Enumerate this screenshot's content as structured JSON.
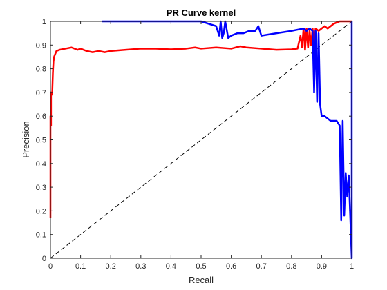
{
  "chart_data": {
    "type": "line",
    "title": "PR Curve kernel",
    "xlabel": "Recall",
    "ylabel": "Precision",
    "xlim": [
      0,
      1
    ],
    "ylim": [
      0,
      1
    ],
    "xticks": [
      "0",
      "0.1",
      "0.2",
      "0.3",
      "0.4",
      "0.5",
      "0.6",
      "0.7",
      "0.8",
      "0.9",
      "1"
    ],
    "yticks": [
      "0",
      "0.1",
      "0.2",
      "0.3",
      "0.4",
      "0.5",
      "0.6",
      "0.7",
      "0.8",
      "0.9",
      "1"
    ],
    "grid": false,
    "series": [
      {
        "color": "#ff0000",
        "x": [
          0.0,
          0.0,
          0.002,
          0.002,
          0.004,
          0.006,
          0.008,
          0.01,
          0.012,
          0.015,
          0.02,
          0.03,
          0.05,
          0.07,
          0.09,
          0.1,
          0.11,
          0.12,
          0.14,
          0.16,
          0.18,
          0.2,
          0.25,
          0.3,
          0.35,
          0.4,
          0.45,
          0.48,
          0.5,
          0.55,
          0.6,
          0.63,
          0.65,
          0.7,
          0.75,
          0.8,
          0.82,
          0.83,
          0.835,
          0.84,
          0.845,
          0.85,
          0.855,
          0.86,
          0.865,
          0.87,
          0.875,
          0.88,
          0.89,
          0.9,
          0.91,
          0.92,
          0.93,
          0.94,
          0.95,
          0.96,
          1.0
        ],
        "y": [
          0.17,
          0.6,
          0.56,
          0.7,
          0.69,
          0.7,
          0.78,
          0.83,
          0.85,
          0.86,
          0.875,
          0.88,
          0.885,
          0.89,
          0.88,
          0.885,
          0.88,
          0.875,
          0.87,
          0.875,
          0.87,
          0.875,
          0.88,
          0.885,
          0.885,
          0.882,
          0.885,
          0.89,
          0.885,
          0.89,
          0.885,
          0.895,
          0.89,
          0.885,
          0.88,
          0.882,
          0.885,
          0.94,
          0.89,
          0.97,
          0.88,
          0.97,
          0.89,
          0.96,
          0.9,
          0.97,
          0.9,
          0.97,
          0.96,
          0.97,
          0.98,
          0.97,
          0.98,
          0.99,
          0.995,
          1.0,
          1.0
        ]
      },
      {
        "color": "#0000ff",
        "x": [
          0.17,
          0.5,
          0.55,
          0.56,
          0.565,
          0.57,
          0.575,
          0.58,
          0.59,
          0.6,
          0.62,
          0.64,
          0.66,
          0.68,
          0.69,
          0.7,
          0.75,
          0.8,
          0.84,
          0.85,
          0.86,
          0.87,
          0.875,
          0.88,
          0.885,
          0.89,
          0.895,
          0.9,
          0.91,
          0.92,
          0.93,
          0.95,
          0.96,
          0.965,
          0.97,
          0.975,
          0.98,
          0.985,
          0.99,
          1.0,
          1.0
        ],
        "y": [
          1.0,
          1.0,
          0.98,
          0.94,
          1.0,
          0.93,
          0.95,
          1.0,
          0.93,
          0.94,
          0.95,
          0.95,
          0.96,
          0.96,
          0.98,
          0.94,
          0.95,
          0.96,
          0.97,
          0.96,
          0.97,
          0.96,
          0.7,
          0.96,
          0.66,
          0.95,
          0.65,
          0.6,
          0.6,
          0.59,
          0.58,
          0.58,
          0.56,
          0.16,
          0.58,
          0.18,
          0.36,
          0.26,
          0.35,
          0.0,
          1.0
        ]
      },
      {
        "color": "#000000",
        "dashed": true,
        "x": [
          0,
          1
        ],
        "y": [
          0,
          1
        ]
      }
    ]
  }
}
